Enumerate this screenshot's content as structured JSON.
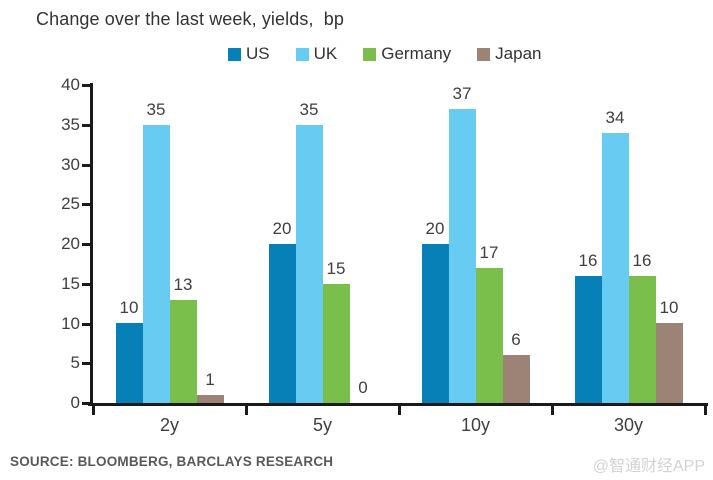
{
  "title": "Change over the last week, yields,  bp",
  "legend": {
    "items": [
      {
        "label": "US",
        "color": "#0680b6"
      },
      {
        "label": "UK",
        "color": "#68ccf2"
      },
      {
        "label": "Germany",
        "color": "#7abf4c"
      },
      {
        "label": "Japan",
        "color": "#9c8376"
      }
    ]
  },
  "chart_data": {
    "type": "bar",
    "title": "Change over the last week, yields, bp",
    "categories": [
      "2y",
      "5y",
      "10y",
      "30y"
    ],
    "series": [
      {
        "name": "US",
        "color": "#0680b6",
        "values": [
          10,
          20,
          20,
          16
        ]
      },
      {
        "name": "UK",
        "color": "#68ccf2",
        "values": [
          35,
          35,
          37,
          34
        ]
      },
      {
        "name": "Germany",
        "color": "#7abf4c",
        "values": [
          13,
          15,
          17,
          16
        ]
      },
      {
        "name": "Japan",
        "color": "#9c8376",
        "values": [
          1,
          0,
          6,
          10
        ]
      }
    ],
    "xlabel": "",
    "ylabel": "",
    "ylim": [
      0,
      40
    ],
    "yticks": [
      0,
      5,
      10,
      15,
      20,
      25,
      30,
      35,
      40
    ],
    "grid": false,
    "legend_position": "top",
    "data_labels": true
  },
  "source": "SOURCE: BLOOMBERG, BARCLAYS RESEARCH",
  "watermark": "@智通财经APP",
  "colors": {
    "axis": "#1a1a1a",
    "label_text": "#404040"
  }
}
